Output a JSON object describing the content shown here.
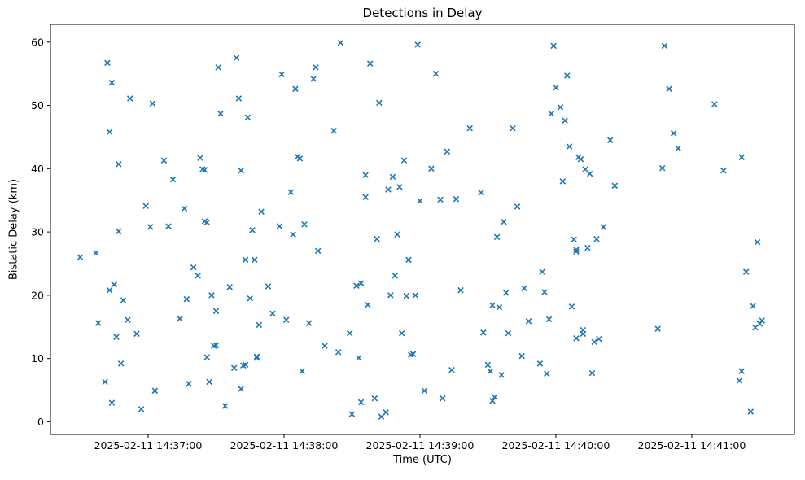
{
  "chart_data": {
    "type": "scatter",
    "title": "Detections in Delay",
    "xlabel": "Time (UTC)",
    "ylabel": "Bistatic Delay (km)",
    "marker": "x",
    "marker_color": "#1f77b4",
    "background_color": "#ffffff",
    "legend": "none",
    "grid": false,
    "x_unit": "seconds after 2025-02-11 14:36:00 UTC",
    "xlim": [
      16.9,
      345.3
    ],
    "ylim": [
      -2.0,
      62.8
    ],
    "x_ticks": [
      60,
      120,
      180,
      240,
      300
    ],
    "x_tick_labels": [
      "2025-02-11 14:37:00",
      "2025-02-11 14:38:00",
      "2025-02-11 14:39:00",
      "2025-02-11 14:40:00",
      "2025-02-11 14:41:00"
    ],
    "y_ticks": [
      0,
      10,
      20,
      30,
      40,
      50,
      60
    ],
    "points": [
      [
        30,
        26.0
      ],
      [
        37,
        26.7
      ],
      [
        38,
        15.6
      ],
      [
        41,
        6.3
      ],
      [
        42,
        56.7
      ],
      [
        43,
        45.8
      ],
      [
        43,
        20.8
      ],
      [
        44,
        53.6
      ],
      [
        44,
        3.0
      ],
      [
        45,
        21.7
      ],
      [
        46,
        13.4
      ],
      [
        47,
        30.1
      ],
      [
        47,
        40.7
      ],
      [
        48,
        9.2
      ],
      [
        49,
        19.2
      ],
      [
        51,
        16.1
      ],
      [
        52,
        51.1
      ],
      [
        55,
        13.9
      ],
      [
        57,
        2.0
      ],
      [
        59,
        34.1
      ],
      [
        61,
        30.8
      ],
      [
        62,
        50.3
      ],
      [
        63,
        4.9
      ],
      [
        67,
        41.3
      ],
      [
        69,
        30.9
      ],
      [
        71,
        38.3
      ],
      [
        74,
        16.3
      ],
      [
        76,
        33.7
      ],
      [
        77,
        19.4
      ],
      [
        78,
        6.0
      ],
      [
        80,
        24.4
      ],
      [
        82,
        23.1
      ],
      [
        83,
        41.7
      ],
      [
        84,
        39.9
      ],
      [
        85,
        39.8
      ],
      [
        85,
        31.7
      ],
      [
        86,
        31.5
      ],
      [
        86,
        10.2
      ],
      [
        87,
        6.3
      ],
      [
        88,
        20.0
      ],
      [
        89,
        12.0
      ],
      [
        90,
        12.1
      ],
      [
        90,
        17.5
      ],
      [
        91,
        56.0
      ],
      [
        92,
        48.7
      ],
      [
        94,
        2.5
      ],
      [
        96,
        21.3
      ],
      [
        98,
        8.5
      ],
      [
        99,
        57.5
      ],
      [
        100,
        51.1
      ],
      [
        101,
        39.7
      ],
      [
        101,
        5.2
      ],
      [
        102,
        8.9
      ],
      [
        103,
        9.0
      ],
      [
        103,
        25.6
      ],
      [
        104,
        48.1
      ],
      [
        105,
        19.5
      ],
      [
        106,
        30.3
      ],
      [
        107,
        25.6
      ],
      [
        108,
        10.1
      ],
      [
        108,
        10.3
      ],
      [
        109,
        15.3
      ],
      [
        110,
        33.2
      ],
      [
        113,
        21.4
      ],
      [
        115,
        17.1
      ],
      [
        118,
        30.9
      ],
      [
        119,
        54.9
      ],
      [
        121,
        16.1
      ],
      [
        123,
        36.3
      ],
      [
        124,
        29.6
      ],
      [
        125,
        52.6
      ],
      [
        126,
        41.9
      ],
      [
        127,
        41.6
      ],
      [
        128,
        8.0
      ],
      [
        129,
        31.2
      ],
      [
        131,
        15.6
      ],
      [
        133,
        54.2
      ],
      [
        134,
        56.0
      ],
      [
        135,
        27.0
      ],
      [
        138,
        12.0
      ],
      [
        142,
        46.0
      ],
      [
        144,
        11.0
      ],
      [
        145,
        59.9
      ],
      [
        149,
        14.0
      ],
      [
        150,
        1.2
      ],
      [
        152,
        21.5
      ],
      [
        153,
        10.1
      ],
      [
        154,
        21.9
      ],
      [
        154,
        3.1
      ],
      [
        156,
        35.5
      ],
      [
        156,
        39.0
      ],
      [
        157,
        18.5
      ],
      [
        158,
        56.6
      ],
      [
        160,
        3.7
      ],
      [
        161,
        28.9
      ],
      [
        162,
        50.4
      ],
      [
        163,
        0.8
      ],
      [
        165,
        1.5
      ],
      [
        166,
        36.7
      ],
      [
        167,
        20.0
      ],
      [
        168,
        38.7
      ],
      [
        169,
        23.1
      ],
      [
        170,
        29.6
      ],
      [
        171,
        37.1
      ],
      [
        172,
        14.0
      ],
      [
        173,
        41.3
      ],
      [
        174,
        19.9
      ],
      [
        175,
        25.6
      ],
      [
        176,
        10.6
      ],
      [
        177,
        10.7
      ],
      [
        178,
        20.0
      ],
      [
        179,
        59.6
      ],
      [
        180,
        34.9
      ],
      [
        182,
        4.9
      ],
      [
        185,
        40.0
      ],
      [
        187,
        55.0
      ],
      [
        189,
        35.1
      ],
      [
        190,
        3.7
      ],
      [
        192,
        42.7
      ],
      [
        194,
        8.2
      ],
      [
        196,
        35.2
      ],
      [
        198,
        20.8
      ],
      [
        202,
        46.4
      ],
      [
        207,
        36.2
      ],
      [
        208,
        14.1
      ],
      [
        210,
        9.0
      ],
      [
        211,
        8.0
      ],
      [
        212,
        18.4
      ],
      [
        212,
        3.3
      ],
      [
        213,
        3.9
      ],
      [
        214,
        29.2
      ],
      [
        215,
        18.1
      ],
      [
        216,
        7.4
      ],
      [
        217,
        31.6
      ],
      [
        218,
        20.4
      ],
      [
        219,
        14.0
      ],
      [
        221,
        46.4
      ],
      [
        223,
        34.0
      ],
      [
        225,
        10.4
      ],
      [
        226,
        21.1
      ],
      [
        228,
        15.9
      ],
      [
        233,
        9.2
      ],
      [
        234,
        23.7
      ],
      [
        235,
        20.5
      ],
      [
        236,
        7.6
      ],
      [
        237,
        16.2
      ],
      [
        238,
        48.7
      ],
      [
        239,
        59.4
      ],
      [
        240,
        52.8
      ],
      [
        242,
        49.7
      ],
      [
        243,
        38.0
      ],
      [
        244,
        47.6
      ],
      [
        245,
        54.7
      ],
      [
        246,
        43.5
      ],
      [
        247,
        18.2
      ],
      [
        248,
        28.8
      ],
      [
        249,
        27.2
      ],
      [
        249,
        26.9
      ],
      [
        249,
        13.2
      ],
      [
        250,
        41.8
      ],
      [
        251,
        41.5
      ],
      [
        252,
        13.9
      ],
      [
        252,
        14.5
      ],
      [
        253,
        39.9
      ],
      [
        254,
        27.5
      ],
      [
        255,
        39.2
      ],
      [
        256,
        7.7
      ],
      [
        257,
        12.6
      ],
      [
        258,
        28.9
      ],
      [
        259,
        13.1
      ],
      [
        261,
        30.8
      ],
      [
        264,
        44.5
      ],
      [
        266,
        37.3
      ],
      [
        285,
        14.7
      ],
      [
        287,
        40.1
      ],
      [
        288,
        59.4
      ],
      [
        290,
        52.6
      ],
      [
        292,
        45.6
      ],
      [
        294,
        43.2
      ],
      [
        310,
        50.2
      ],
      [
        314,
        39.7
      ],
      [
        321,
        6.5
      ],
      [
        322,
        8.0
      ],
      [
        322,
        41.8
      ],
      [
        324,
        23.7
      ],
      [
        326,
        1.6
      ],
      [
        327,
        18.3
      ],
      [
        328,
        14.9
      ],
      [
        329,
        28.4
      ],
      [
        330,
        15.5
      ],
      [
        331,
        16.0
      ]
    ]
  }
}
